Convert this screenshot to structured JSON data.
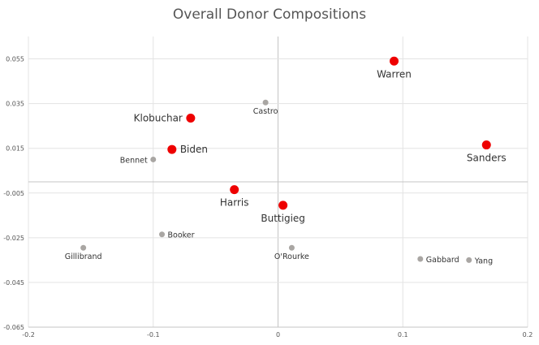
{
  "chart_data": {
    "type": "scatter",
    "title": "Overall Donor Compositions",
    "xlim": [
      -0.2,
      0.2
    ],
    "ylim": [
      -0.065,
      0.065
    ],
    "x_ticks": [
      "-0.2",
      "-0.1",
      "0",
      "0.1",
      "0.2"
    ],
    "y_ticks": [
      "0.055",
      "0.035",
      "0.015",
      "-0.005",
      "-0.025",
      "-0.045",
      "-0.065"
    ],
    "grid": true,
    "colors": {
      "highlight": "#ee0000",
      "other": "#a9a6a3"
    },
    "points": [
      {
        "name": "Warren",
        "x": 0.093,
        "y": 0.054,
        "group": "highlight",
        "label_pos": "below"
      },
      {
        "name": "Sanders",
        "x": 0.167,
        "y": 0.0165,
        "group": "highlight",
        "label_pos": "below"
      },
      {
        "name": "Klobuchar",
        "x": -0.07,
        "y": 0.0285,
        "group": "highlight",
        "label_pos": "left"
      },
      {
        "name": "Biden",
        "x": -0.085,
        "y": 0.0145,
        "group": "highlight",
        "label_pos": "right"
      },
      {
        "name": "Harris",
        "x": -0.035,
        "y": -0.0035,
        "group": "highlight",
        "label_pos": "below"
      },
      {
        "name": "Buttigieg",
        "x": 0.004,
        "y": -0.0105,
        "group": "highlight",
        "label_pos": "below"
      },
      {
        "name": "Castro",
        "x": -0.01,
        "y": 0.0355,
        "group": "other",
        "label_pos": "below"
      },
      {
        "name": "Bennet",
        "x": -0.1,
        "y": 0.01,
        "group": "other",
        "label_pos": "left"
      },
      {
        "name": "Booker",
        "x": -0.093,
        "y": -0.0235,
        "group": "other",
        "label_pos": "right"
      },
      {
        "name": "Gillibrand",
        "x": -0.156,
        "y": -0.0295,
        "group": "other",
        "label_pos": "below"
      },
      {
        "name": "O'Rourke",
        "x": 0.011,
        "y": -0.0295,
        "group": "other",
        "label_pos": "below"
      },
      {
        "name": "Gabbard",
        "x": 0.114,
        "y": -0.0345,
        "group": "other",
        "label_pos": "right"
      },
      {
        "name": "Yang",
        "x": 0.153,
        "y": -0.035,
        "group": "other",
        "label_pos": "right"
      }
    ]
  }
}
